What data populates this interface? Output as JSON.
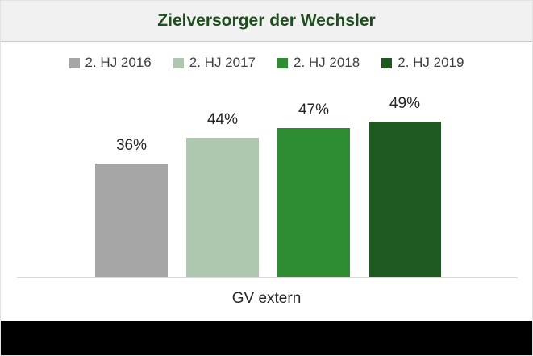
{
  "chart_data": {
    "type": "bar",
    "title": "Zielversorger der Wechsler",
    "categories": [
      "GV extern"
    ],
    "series": [
      {
        "name": "2. HJ 2016",
        "values": [
          36
        ],
        "labels": [
          "36%"
        ],
        "color": "#A6A6A6"
      },
      {
        "name": "2. HJ 2017",
        "values": [
          44
        ],
        "labels": [
          "44%"
        ],
        "color": "#AEC8B0"
      },
      {
        "name": "2. HJ 2018",
        "values": [
          47
        ],
        "labels": [
          "47%"
        ],
        "color": "#2E8C32"
      },
      {
        "name": "2. HJ 2019",
        "values": [
          49
        ],
        "labels": [
          "49%"
        ],
        "color": "#1F5922"
      }
    ],
    "value_unit": "percent",
    "ylim": [
      0,
      60
    ],
    "legend_position": "top",
    "grid": false,
    "data_labels_visible": true,
    "xlabel": "",
    "ylabel": ""
  },
  "colors": {
    "title_text": "#1E4D1E",
    "title_band_bg": "#F1F1F1",
    "title_band_border": "#C9C9C9",
    "axis_line": "#D9D9D9",
    "data_label_text": "#262626",
    "legend_text": "#404040",
    "bottom_bar": "#000000"
  }
}
